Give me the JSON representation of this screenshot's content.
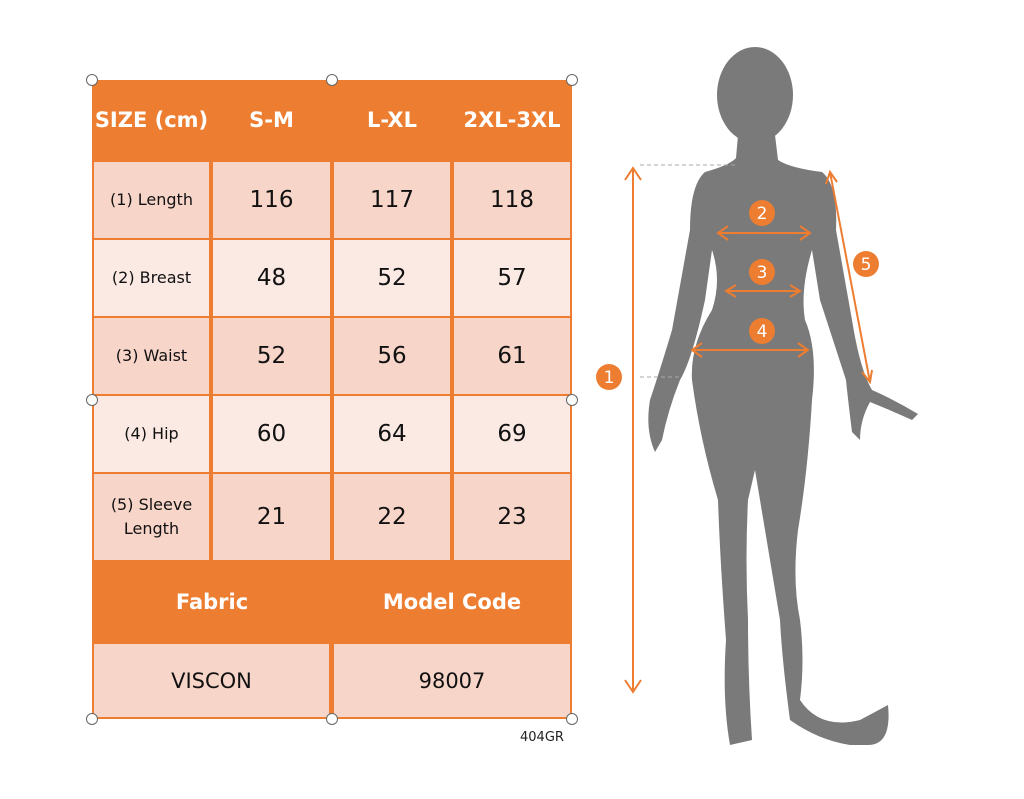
{
  "table": {
    "header": {
      "size_label": "SIZE (cm)",
      "columns": [
        "S-M",
        "L-XL",
        "2XL-3XL"
      ]
    },
    "rows": [
      {
        "label": "(1) Length",
        "values": [
          "116",
          "117",
          "118"
        ]
      },
      {
        "label": "(2) Breast",
        "values": [
          "48",
          "52",
          "57"
        ]
      },
      {
        "label": "(3) Waist",
        "values": [
          "52",
          "56",
          "61"
        ]
      },
      {
        "label": "(4) Hip",
        "values": [
          "60",
          "64",
          "69"
        ]
      },
      {
        "label": "(5) Sleeve Length",
        "values": [
          "21",
          "22",
          "23"
        ]
      }
    ],
    "footer_headers": {
      "fabric": "Fabric",
      "model_code": "Model Code"
    },
    "footer_values": {
      "fabric": "VISCON",
      "model_code": "98007"
    }
  },
  "product_code": "404GR",
  "figure_markers": [
    "1",
    "2",
    "3",
    "4",
    "5"
  ],
  "colors": {
    "accent": "#ED7D31",
    "row_dark": "#F8D5C9",
    "row_light": "#FBE9E3",
    "silhouette": "#7A7A7A"
  }
}
